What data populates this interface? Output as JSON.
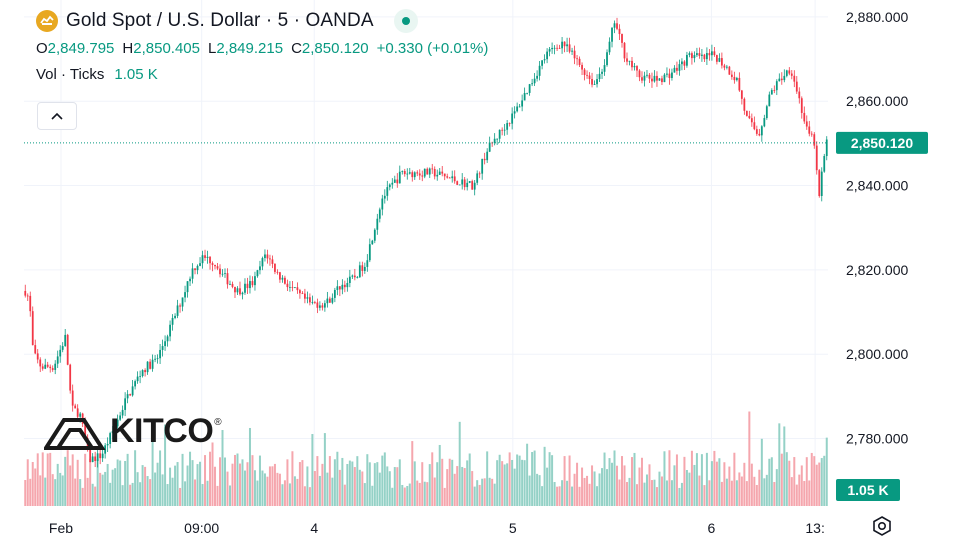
{
  "header": {
    "symbol_title": "Gold Spot / U.S. Dollar · 5 · OANDA",
    "ohlc": {
      "o_label": "O",
      "o_value": "2,849.795",
      "h_label": "H",
      "h_value": "2,850.405",
      "l_label": "L",
      "l_value": "2,849.215",
      "c_label": "C",
      "c_value": "2,850.120",
      "change": "+0.330 (+0.01%)"
    },
    "volume": {
      "label": "Vol · Ticks",
      "value": "1.05 K"
    }
  },
  "watermark": {
    "text": "KITCO",
    "registered": "®"
  },
  "colors": {
    "up": "#089981",
    "down": "#f23645",
    "vol_up": "#94d1c6",
    "vol_down": "#f5a6ad",
    "grid": "#f0f3fa",
    "axis_text": "#131722",
    "accent_gold": "#e8a821"
  },
  "chart_data": {
    "type": "candlestick",
    "title": "Gold Spot / U.S. Dollar · 5 · OANDA",
    "interval": "5",
    "ylim": [
      2764,
      2884
    ],
    "y_ticks": [
      "2,880.000",
      "2,860.000",
      "2,840.000",
      "2,820.000",
      "2,800.000",
      "2,780.000"
    ],
    "y_tick_values": [
      2880,
      2860,
      2840,
      2820,
      2800,
      2780
    ],
    "x_ticks": [
      {
        "label": "Feb",
        "pos": 0.046
      },
      {
        "label": "09:00",
        "pos": 0.221
      },
      {
        "label": "4",
        "pos": 0.361
      },
      {
        "label": "5",
        "pos": 0.608
      },
      {
        "label": "6",
        "pos": 0.855
      },
      {
        "label": "13:",
        "pos": 0.984
      }
    ],
    "price_path": [
      [
        0.0,
        2815
      ],
      [
        0.005,
        2813
      ],
      [
        0.01,
        2800
      ],
      [
        0.02,
        2797
      ],
      [
        0.035,
        2797
      ],
      [
        0.05,
        2804
      ],
      [
        0.058,
        2787
      ],
      [
        0.068,
        2786
      ],
      [
        0.08,
        2775
      ],
      [
        0.095,
        2776
      ],
      [
        0.11,
        2782
      ],
      [
        0.125,
        2789
      ],
      [
        0.145,
        2796
      ],
      [
        0.165,
        2799
      ],
      [
        0.18,
        2806
      ],
      [
        0.195,
        2813
      ],
      [
        0.208,
        2820
      ],
      [
        0.222,
        2823
      ],
      [
        0.235,
        2822
      ],
      [
        0.25,
        2818
      ],
      [
        0.265,
        2815
      ],
      [
        0.285,
        2817
      ],
      [
        0.3,
        2824
      ],
      [
        0.315,
        2819
      ],
      [
        0.335,
        2815
      ],
      [
        0.355,
        2812
      ],
      [
        0.375,
        2812
      ],
      [
        0.392,
        2816
      ],
      [
        0.41,
        2818
      ],
      [
        0.425,
        2822
      ],
      [
        0.445,
        2837
      ],
      [
        0.47,
        2843
      ],
      [
        0.49,
        2843
      ],
      [
        0.51,
        2843
      ],
      [
        0.54,
        2841
      ],
      [
        0.56,
        2840
      ],
      [
        0.575,
        2848
      ],
      [
        0.59,
        2852
      ],
      [
        0.61,
        2857
      ],
      [
        0.63,
        2864
      ],
      [
        0.65,
        2871
      ],
      [
        0.67,
        2874
      ],
      [
        0.69,
        2869
      ],
      [
        0.71,
        2864
      ],
      [
        0.725,
        2870
      ],
      [
        0.735,
        2879
      ],
      [
        0.748,
        2871
      ],
      [
        0.765,
        2866
      ],
      [
        0.785,
        2865
      ],
      [
        0.8,
        2866
      ],
      [
        0.815,
        2868
      ],
      [
        0.83,
        2871
      ],
      [
        0.845,
        2870
      ],
      [
        0.86,
        2871
      ],
      [
        0.875,
        2868
      ],
      [
        0.888,
        2865
      ],
      [
        0.9,
        2856
      ],
      [
        0.915,
        2852
      ],
      [
        0.93,
        2862
      ],
      [
        0.945,
        2866
      ],
      [
        0.955,
        2868
      ],
      [
        0.965,
        2861
      ],
      [
        0.975,
        2853
      ],
      [
        0.985,
        2850
      ],
      [
        0.99,
        2836
      ],
      [
        0.995,
        2845
      ],
      [
        1.0,
        2850
      ]
    ],
    "candle_count": 322,
    "last_price": "2,850.120",
    "last_price_value": 2850.12,
    "volume_last": "1.05 K"
  }
}
